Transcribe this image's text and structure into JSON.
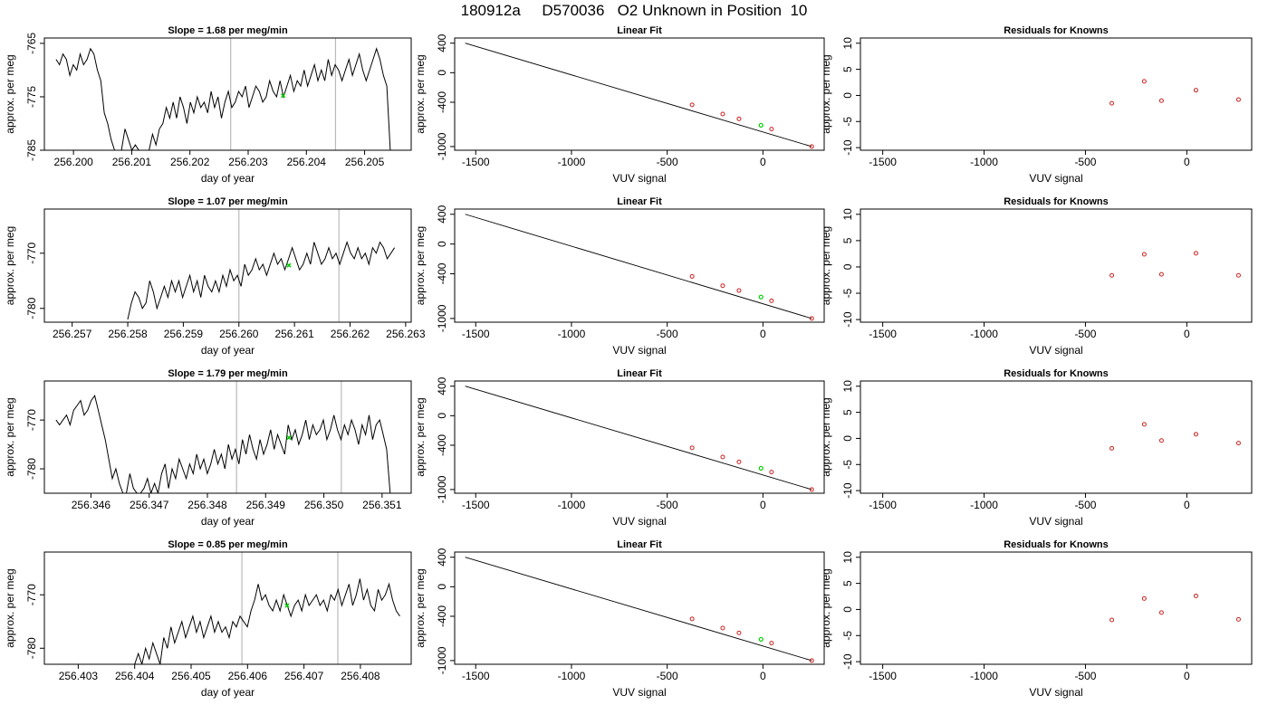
{
  "page_title": "180912a     D570036   O2 Unknown in Position  10",
  "chart_data": [
    {
      "type": "line",
      "title": "Slope =  1.68  per meg/min",
      "xlabel": "day of year",
      "ylabel": "approx. per meg",
      "xlim": [
        256.1995,
        256.2058
      ],
      "ylim": [
        -785,
        -764
      ],
      "x_ticks": [
        "256.200",
        "256.201",
        "256.202",
        "256.203",
        "256.204",
        "256.205"
      ],
      "y_ticks": [
        "-765",
        "-775",
        "-785"
      ],
      "y_tick_values": [
        -765,
        -775,
        -785
      ],
      "vlines": [
        256.2027,
        256.2045
      ],
      "marker": {
        "x": 256.2036,
        "y": -774.8,
        "color": "#00cc00"
      },
      "x_start": 256.1997,
      "x_end": 256.2055,
      "y_values": [
        -768,
        -769,
        -767,
        -768,
        -771,
        -769,
        -770,
        -767,
        -769,
        -768,
        -766,
        -767,
        -770,
        -772,
        -778,
        -780,
        -783,
        -785,
        -785,
        -785,
        -781,
        -783,
        -785,
        -784,
        -785,
        -785,
        -785,
        -785,
        -782,
        -784,
        -781,
        -780,
        -777,
        -779,
        -776,
        -779,
        -775,
        -777,
        -780,
        -776,
        -778,
        -775,
        -777,
        -776,
        -778,
        -774,
        -777,
        -775,
        -779,
        -776,
        -774,
        -777,
        -776,
        -774,
        -775,
        -773,
        -777,
        -775,
        -773,
        -774,
        -776,
        -775,
        -772,
        -774,
        -775,
        -772,
        -775,
        -773,
        -771,
        -774,
        -772,
        -773,
        -770,
        -773,
        -771,
        -769,
        -772,
        -770,
        -772,
        -768,
        -771,
        -769,
        -770,
        -772,
        -770,
        -768,
        -771,
        -769,
        -767,
        -770,
        -772,
        -770,
        -768,
        -766,
        -768,
        -771,
        -773,
        -785,
        -785
      ]
    },
    {
      "type": "scatter",
      "title": "Linear Fit",
      "xlabel": "VUV signal",
      "ylabel": "approx. per meg",
      "xlim": [
        -1610,
        320
      ],
      "ylim": [
        -1050,
        470
      ],
      "x_ticks": [
        "-1500",
        "-1000",
        "-500",
        "0"
      ],
      "x_tick_values": [
        -1500,
        -1000,
        -500,
        0
      ],
      "y_ticks": [
        "400",
        "0",
        "-400",
        "-1000"
      ],
      "y_tick_values": [
        400,
        0,
        -400,
        -1000
      ],
      "fit_line": [
        [
          -1555,
          400
        ],
        [
          255,
          -1000
        ]
      ],
      "points": [
        [
          -370,
          -435
        ],
        [
          -210,
          -560
        ],
        [
          -125,
          -625
        ],
        [
          45,
          -763
        ],
        [
          255,
          -1000
        ]
      ],
      "marker": {
        "x": -10,
        "y": -712,
        "color": "#00cc00"
      }
    },
    {
      "type": "scatter",
      "title": "Residuals for Knowns",
      "xlabel": "VUV signal",
      "ylabel": "approx. per meg",
      "xlim": [
        -1610,
        320
      ],
      "ylim": [
        -10.5,
        11
      ],
      "x_ticks": [
        "-1500",
        "-1000",
        "-500",
        "0"
      ],
      "x_tick_values": [
        -1500,
        -1000,
        -500,
        0
      ],
      "y_ticks": [
        "10",
        "5",
        "0",
        "-5",
        "-10"
      ],
      "y_tick_values": [
        10,
        5,
        0,
        -5,
        -10
      ],
      "points": [
        [
          -370,
          -1.5
        ],
        [
          -210,
          2.7
        ],
        [
          -125,
          -1.0
        ],
        [
          45,
          1.0
        ],
        [
          255,
          -0.8
        ]
      ]
    },
    {
      "type": "line",
      "title": "Slope =  1.07  per meg/min",
      "xlabel": "day of year",
      "ylabel": "approx. per meg",
      "xlim": [
        256.2565,
        256.2631
      ],
      "ylim": [
        -782.5,
        -762
      ],
      "x_ticks": [
        "256.257",
        "256.258",
        "256.259",
        "256.260",
        "256.261",
        "256.262",
        "256.263"
      ],
      "y_ticks": [
        "-770",
        "-780"
      ],
      "y_tick_values": [
        -770,
        -780
      ],
      "vlines": [
        256.26,
        256.2618
      ],
      "marker": {
        "x": 256.2609,
        "y": -772.2,
        "color": "#00cc00"
      },
      "x_start": 256.258,
      "x_end": 256.2628,
      "y_values": [
        -782,
        -779,
        -777,
        -778,
        -780,
        -779,
        -775,
        -777,
        -780,
        -778,
        -776,
        -778,
        -775,
        -777,
        -775,
        -778,
        -776,
        -774,
        -777,
        -775,
        -778,
        -774,
        -776,
        -777,
        -775,
        -777,
        -774,
        -776,
        -773,
        -775,
        -774,
        -776,
        -772,
        -774,
        -773,
        -771,
        -773,
        -772,
        -774,
        -772,
        -770,
        -772,
        -771,
        -773,
        -771,
        -769,
        -771,
        -773,
        -772,
        -770,
        -772,
        -768,
        -770,
        -772,
        -771,
        -769,
        -771,
        -770,
        -772,
        -770,
        -768,
        -770,
        -771,
        -769,
        -771,
        -770,
        -772,
        -769,
        -770,
        -768,
        -769,
        -771,
        -770,
        -769
      ]
    },
    {
      "type": "scatter",
      "title": "Linear Fit",
      "xlabel": "VUV signal",
      "ylabel": "approx. per meg",
      "xlim": [
        -1610,
        320
      ],
      "ylim": [
        -1050,
        470
      ],
      "x_ticks": [
        "-1500",
        "-1000",
        "-500",
        "0"
      ],
      "x_tick_values": [
        -1500,
        -1000,
        -500,
        0
      ],
      "y_ticks": [
        "400",
        "0",
        "-400",
        "-1000"
      ],
      "y_tick_values": [
        400,
        0,
        -400,
        -1000
      ],
      "fit_line": [
        [
          -1555,
          400
        ],
        [
          255,
          -1000
        ]
      ],
      "points": [
        [
          -370,
          -435
        ],
        [
          -210,
          -560
        ],
        [
          -125,
          -625
        ],
        [
          45,
          -763
        ],
        [
          255,
          -1000
        ]
      ],
      "marker": {
        "x": -10,
        "y": -712,
        "color": "#00cc00"
      }
    },
    {
      "type": "scatter",
      "title": "Residuals for Knowns",
      "xlabel": "VUV signal",
      "ylabel": "approx. per meg",
      "xlim": [
        -1610,
        320
      ],
      "ylim": [
        -10.5,
        11
      ],
      "x_ticks": [
        "-1500",
        "-1000",
        "-500",
        "0"
      ],
      "x_tick_values": [
        -1500,
        -1000,
        -500,
        0
      ],
      "y_ticks": [
        "10",
        "5",
        "0",
        "-5",
        "-10"
      ],
      "y_tick_values": [
        10,
        5,
        0,
        -5,
        -10
      ],
      "points": [
        [
          -370,
          -1.6
        ],
        [
          -210,
          2.4
        ],
        [
          -125,
          -1.4
        ],
        [
          45,
          2.6
        ],
        [
          255,
          -1.6
        ]
      ]
    },
    {
      "type": "line",
      "title": "Slope =  1.79  per meg/min",
      "xlabel": "day of year",
      "ylabel": "approx. per meg",
      "xlim": [
        256.3452,
        256.3515
      ],
      "ylim": [
        -785,
        -762
      ],
      "x_ticks": [
        "256.346",
        "256.347",
        "256.348",
        "256.349",
        "256.350",
        "256.351"
      ],
      "y_ticks": [
        "-770",
        "-780"
      ],
      "y_tick_values": [
        -770,
        -780
      ],
      "vlines": [
        256.3485,
        256.3503
      ],
      "marker": {
        "x": 256.3494,
        "y": -773.6,
        "color": "#00cc00"
      },
      "x_start": 256.3454,
      "x_end": 256.3512,
      "y_values": [
        -770,
        -771,
        -770,
        -769,
        -771,
        -768,
        -767,
        -766,
        -769,
        -768,
        -766,
        -765,
        -768,
        -771,
        -774,
        -778,
        -782,
        -780,
        -783,
        -785,
        -785,
        -781,
        -784,
        -785,
        -785,
        -784,
        -782,
        -785,
        -783,
        -785,
        -781,
        -779,
        -784,
        -780,
        -782,
        -778,
        -780,
        -782,
        -779,
        -781,
        -777,
        -780,
        -778,
        -781,
        -779,
        -776,
        -779,
        -777,
        -780,
        -775,
        -778,
        -776,
        -779,
        -774,
        -777,
        -773,
        -776,
        -778,
        -774,
        -777,
        -775,
        -772,
        -776,
        -773,
        -775,
        -777,
        -771,
        -774,
        -772,
        -775,
        -773,
        -770,
        -774,
        -771,
        -773,
        -772,
        -770,
        -774,
        -772,
        -769,
        -772,
        -774,
        -771,
        -773,
        -770,
        -772,
        -775,
        -771,
        -773,
        -769,
        -774,
        -771,
        -770,
        -773,
        -776,
        -785,
        -785
      ]
    },
    {
      "type": "scatter",
      "title": "Linear Fit",
      "xlabel": "VUV signal",
      "ylabel": "approx. per meg",
      "xlim": [
        -1610,
        320
      ],
      "ylim": [
        -1050,
        470
      ],
      "x_ticks": [
        "-1500",
        "-1000",
        "-500",
        "0"
      ],
      "x_tick_values": [
        -1500,
        -1000,
        -500,
        0
      ],
      "y_ticks": [
        "400",
        "0",
        "-400",
        "-1000"
      ],
      "y_tick_values": [
        400,
        0,
        -400,
        -1000
      ],
      "fit_line": [
        [
          -1555,
          400
        ],
        [
          255,
          -1000
        ]
      ],
      "points": [
        [
          -370,
          -435
        ],
        [
          -210,
          -560
        ],
        [
          -125,
          -625
        ],
        [
          45,
          -763
        ],
        [
          255,
          -1000
        ]
      ],
      "marker": {
        "x": -10,
        "y": -712,
        "color": "#00cc00"
      }
    },
    {
      "type": "scatter",
      "title": "Residuals for Knowns",
      "xlabel": "VUV signal",
      "ylabel": "approx. per meg",
      "xlim": [
        -1610,
        320
      ],
      "ylim": [
        -10.5,
        11
      ],
      "x_ticks": [
        "-1500",
        "-1000",
        "-500",
        "0"
      ],
      "x_tick_values": [
        -1500,
        -1000,
        -500,
        0
      ],
      "y_ticks": [
        "10",
        "5",
        "0",
        "-5",
        "-10"
      ],
      "y_tick_values": [
        10,
        5,
        0,
        -5,
        -10
      ],
      "points": [
        [
          -370,
          -1.9
        ],
        [
          -210,
          2.7
        ],
        [
          -125,
          -0.4
        ],
        [
          45,
          0.8
        ],
        [
          255,
          -0.9
        ]
      ]
    },
    {
      "type": "line",
      "title": "Slope =  0.85  per meg/min",
      "xlabel": "day of year",
      "ylabel": "approx. per meg",
      "xlim": [
        256.4024,
        256.4089
      ],
      "ylim": [
        -783,
        -762
      ],
      "x_ticks": [
        "256.403",
        "256.404",
        "256.405",
        "256.406",
        "256.407",
        "256.408"
      ],
      "y_ticks": [
        "-770",
        "-780"
      ],
      "y_tick_values": [
        -770,
        -780
      ],
      "vlines": [
        256.4059,
        256.4076
      ],
      "marker": {
        "x": 256.4067,
        "y": -772.0,
        "color": "#00cc00"
      },
      "x_start": 256.404,
      "x_end": 256.4087,
      "y_values": [
        -783,
        -781,
        -783,
        -780,
        -782,
        -779,
        -781,
        -783,
        -778,
        -780,
        -776,
        -779,
        -777,
        -775,
        -778,
        -776,
        -774,
        -777,
        -775,
        -778,
        -776,
        -774,
        -777,
        -775,
        -777,
        -776,
        -778,
        -775,
        -776,
        -774,
        -775,
        -776,
        -773,
        -771,
        -768,
        -771,
        -770,
        -772,
        -773,
        -771,
        -773,
        -770,
        -772,
        -774,
        -772,
        -771,
        -773,
        -770,
        -772,
        -771,
        -770,
        -772,
        -771,
        -773,
        -770,
        -771,
        -769,
        -772,
        -770,
        -768,
        -772,
        -770,
        -767,
        -771,
        -769,
        -772,
        -773,
        -769,
        -771,
        -770,
        -768,
        -771,
        -773,
        -774
      ]
    },
    {
      "type": "scatter",
      "title": "Linear Fit",
      "xlabel": "VUV signal",
      "ylabel": "approx. per meg",
      "xlim": [
        -1610,
        320
      ],
      "ylim": [
        -1050,
        470
      ],
      "x_ticks": [
        "-1500",
        "-1000",
        "-500",
        "0"
      ],
      "x_tick_values": [
        -1500,
        -1000,
        -500,
        0
      ],
      "y_ticks": [
        "400",
        "0",
        "-400",
        "-1000"
      ],
      "y_tick_values": [
        400,
        0,
        -400,
        -1000
      ],
      "fit_line": [
        [
          -1555,
          400
        ],
        [
          255,
          -1000
        ]
      ],
      "points": [
        [
          -370,
          -435
        ],
        [
          -210,
          -560
        ],
        [
          -125,
          -625
        ],
        [
          45,
          -763
        ],
        [
          255,
          -1000
        ]
      ],
      "marker": {
        "x": -10,
        "y": -712,
        "color": "#00cc00"
      }
    },
    {
      "type": "scatter",
      "title": "Residuals for Knowns",
      "xlabel": "VUV signal",
      "ylabel": "approx. per meg",
      "xlim": [
        -1610,
        320
      ],
      "ylim": [
        -10.5,
        11
      ],
      "x_ticks": [
        "-1500",
        "-1000",
        "-500",
        "0"
      ],
      "x_tick_values": [
        -1500,
        -1000,
        -500,
        0
      ],
      "y_ticks": [
        "10",
        "5",
        "0",
        "-5",
        "-10"
      ],
      "y_tick_values": [
        10,
        5,
        0,
        -5,
        -10
      ],
      "points": [
        [
          -370,
          -2.0
        ],
        [
          -210,
          2.1
        ],
        [
          -125,
          -0.6
        ],
        [
          45,
          2.6
        ],
        [
          255,
          -1.9
        ]
      ]
    }
  ],
  "colors": {
    "series_line": "#000000",
    "known_point": "#cc2222",
    "unknown_marker": "#00cc00",
    "vline": "#bbbbbb"
  }
}
